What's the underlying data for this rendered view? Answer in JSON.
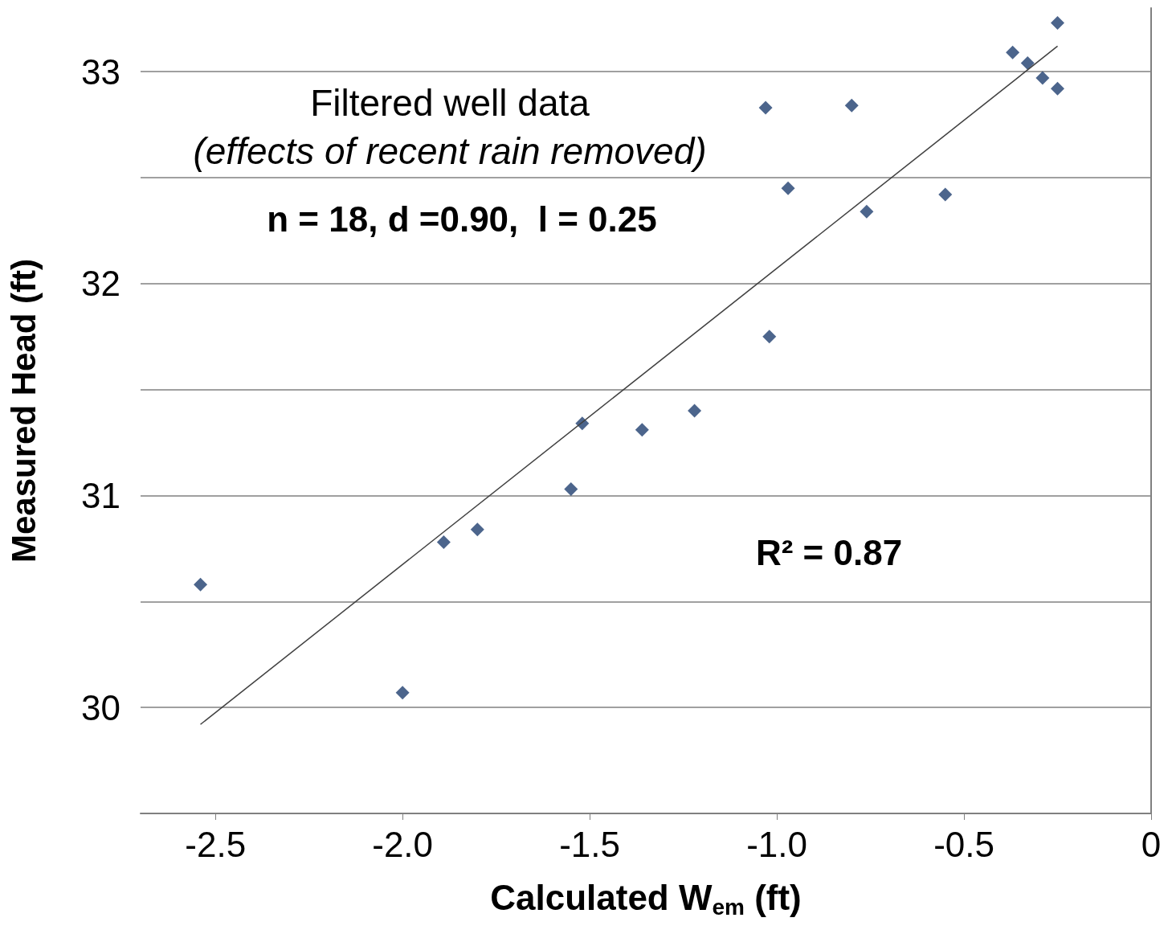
{
  "chart_data": {
    "type": "scatter",
    "xlabel": "Calculated W$_{em}$ (ft)",
    "ylabel": "Measured Head (ft)",
    "annotations": [
      "Filtered well data",
      "(effects of recent rain removed)",
      "n = 18, d =0.90,  l = 0.25",
      "R² = 0.87"
    ],
    "series": [
      {
        "color": "#1f3f6f",
        "marker": "diamond",
        "x": [
          -2.54,
          -2.0,
          -1.89,
          -1.8,
          -1.55,
          -1.52,
          -1.36,
          -1.22,
          -1.02,
          -1.03,
          -0.97,
          -0.8,
          -0.76,
          -0.55,
          -0.37,
          -0.33,
          -0.29,
          -0.25,
          -0.25
        ],
        "values": [
          30.58,
          30.07,
          30.78,
          30.84,
          31.03,
          31.34,
          31.31,
          31.4,
          31.75,
          32.83,
          32.45,
          32.84,
          32.34,
          32.42,
          33.09,
          33.04,
          32.97,
          32.92,
          33.23
        ]
      },
      {
        "type": "line",
        "color": "#404040",
        "marker": "none",
        "x": [
          -2.54,
          -0.25
        ],
        "values": [
          29.92,
          33.12
        ]
      }
    ],
    "xlim": [
      -2.7,
      0
    ],
    "xticks": [
      {
        "value": -2.5,
        "label": "-2.5"
      },
      {
        "value": -2.0,
        "label": "-2.0"
      },
      {
        "value": -1.5,
        "label": "-1.5"
      },
      {
        "value": -1.0,
        "label": "-1.0"
      },
      {
        "value": -0.5,
        "label": "-0.5"
      },
      0
    ],
    "ylim": [
      29.5,
      33.3
    ],
    "yticks": [
      {
        "value": 29.5,
        "label": null
      },
      30,
      {
        "value": 30.5,
        "label": null
      },
      31,
      {
        "value": 31.5,
        "label": null
      },
      32,
      {
        "value": 32.5,
        "label": null
      },
      33
    ],
    "grid": "y"
  }
}
